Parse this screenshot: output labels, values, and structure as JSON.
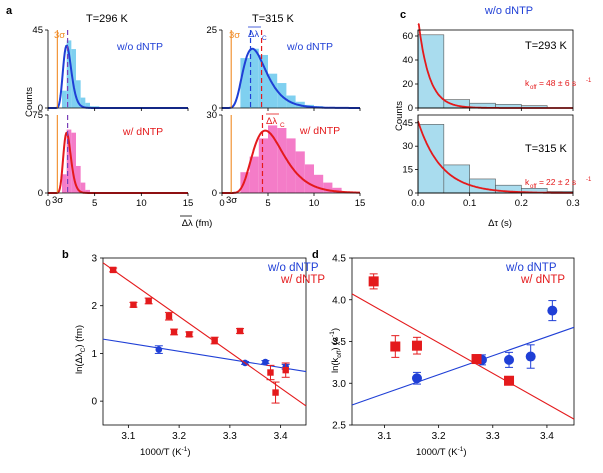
{
  "colors": {
    "blue": "#1f3fd6",
    "red": "#e41a1c",
    "orange": "#f08a24",
    "hist_blue": "#7fd0f0",
    "hist_pink": "#f47cc8",
    "hist_c": "#a9dcee",
    "axis": "#000000"
  },
  "panel_a": {
    "label": "a",
    "temp_left": "T=296 K",
    "temp_right": "T=315 K",
    "ylabel": "Counts",
    "xlabel": "Δλ (fm)",
    "legend_top": "w/o dNTP",
    "legend_bottom": "w/ dNTP",
    "three_sigma": "3σ",
    "dlambda_c": "Δλ",
    "dlambda_c_sub": "C"
  },
  "panel_c": {
    "label": "c",
    "title": "w/o dNTP",
    "ylabel": "Counts",
    "xlabel": "Δτ (s)",
    "temp_top": "T=293 K",
    "temp_bottom": "T=315 K",
    "koff_top": "48 ± 6 s",
    "koff_bottom": "22 ± 2 s",
    "koff_prefix": "k",
    "koff_sub": "off",
    "koff_exp": "-1"
  },
  "panel_b": {
    "label": "b",
    "ylabel": "ln(Δλ",
    "ylabel_sub": "C",
    "ylabel_end": ") (fm)",
    "xlabel": "1000/T (K",
    "xlabel_exp": "-1",
    "xlabel_end": ")",
    "legend_blue": "w/o dNTP",
    "legend_red": "w/ dNTP"
  },
  "panel_d": {
    "label": "d",
    "ylabel": "ln(k",
    "ylabel_sub": "off",
    "ylabel_end": ") (s",
    "ylabel_exp": "-1",
    "ylabel_close": ")",
    "xlabel": "1000/T (K",
    "xlabel_exp": "-1",
    "xlabel_end": ")",
    "legend_blue": "w/o dNTP",
    "legend_red": "w/ dNTP"
  },
  "chart_data": [
    {
      "id": "a_top_left",
      "type": "bar",
      "title": "T=296 K",
      "series": "w/o dNTP",
      "xlim": [
        0,
        15
      ],
      "ylim": [
        0,
        45
      ],
      "yticks": [
        0,
        45
      ],
      "bin_width": 0.5,
      "bins_start": 1.5,
      "values": [
        10,
        39,
        34,
        16,
        6,
        3,
        1,
        1,
        0
      ],
      "fit": {
        "kind": "lognormal",
        "peak_x": 2.0,
        "peak_y": 36,
        "sigma": 0.22
      },
      "three_sigma_x": 1.0,
      "mean_x": 2.1
    },
    {
      "id": "a_bottom_left",
      "type": "bar",
      "series": "w/ dNTP",
      "xlim": [
        0,
        15
      ],
      "ylim": [
        0,
        75
      ],
      "yticks": [
        0,
        75
      ],
      "bin_width": 0.5,
      "bins_start": 1.5,
      "values": [
        18,
        61,
        58,
        26,
        10,
        3,
        1,
        0
      ],
      "fit": {
        "kind": "lognormal",
        "peak_x": 2.0,
        "peak_y": 58,
        "sigma": 0.2
      },
      "three_sigma_x": 1.0,
      "mean_x": 2.1
    },
    {
      "id": "a_top_right",
      "type": "bar",
      "title": "T=315 K",
      "series": "w/o dNTP",
      "xlim": [
        0,
        15
      ],
      "ylim": [
        0,
        25
      ],
      "yticks": [
        0,
        25
      ],
      "bin_width": 1,
      "bins_start": 2.0,
      "values": [
        16,
        19,
        17,
        11,
        8,
        4,
        2,
        1,
        0.6
      ],
      "fit": {
        "kind": "lognormal",
        "peak_x": 3.3,
        "peak_y": 19,
        "sigma": 0.38
      },
      "three_sigma_x": 1.0,
      "mean_x": 3.1,
      "dlambda_c_x": 3.1
    },
    {
      "id": "a_bottom_right",
      "type": "bar",
      "series": "w/ dNTP",
      "xlim": [
        0,
        15
      ],
      "ylim": [
        0,
        30
      ],
      "yticks": [
        0,
        30
      ],
      "bin_width": 1,
      "bins_start": 2.0,
      "values": [
        8,
        14,
        21,
        26,
        25,
        21,
        16,
        11,
        7,
        4,
        2
      ],
      "fit": {
        "kind": "lognormal",
        "peak_x": 4.7,
        "peak_y": 24,
        "sigma": 0.36
      },
      "three_sigma_x": 1.0,
      "mean_x": 4.4,
      "dlambda_c_x": 4.4
    },
    {
      "id": "c_top",
      "type": "bar",
      "title": "T=293 K",
      "xlim": [
        0,
        0.3
      ],
      "ylim": [
        0,
        65
      ],
      "yticks": [
        0,
        20,
        40,
        60
      ],
      "bin_width": 0.05,
      "bins_start": 0,
      "values": [
        61,
        7,
        4,
        3,
        2,
        0
      ],
      "fit": {
        "kind": "exponential",
        "k": 48,
        "amp": 75
      }
    },
    {
      "id": "c_bottom",
      "type": "bar",
      "title": "T=315 K",
      "xlim": [
        0,
        0.3
      ],
      "xticks": [
        0.0,
        0.1,
        0.2,
        0.3
      ],
      "ylim": [
        0,
        50
      ],
      "yticks": [
        0,
        15,
        30,
        45
      ],
      "bin_width": 0.05,
      "bins_start": 0,
      "values": [
        44,
        18,
        9,
        5,
        3,
        1
      ],
      "fit": {
        "kind": "exponential",
        "k": 22,
        "amp": 46
      }
    },
    {
      "id": "b",
      "type": "scatter",
      "xlim": [
        3.05,
        3.45
      ],
      "xticks": [
        3.1,
        3.2,
        3.3,
        3.4
      ],
      "ylim": [
        -0.5,
        3
      ],
      "yticks": [
        0,
        1,
        2,
        3
      ],
      "series": [
        {
          "name": "w/o dNTP",
          "color": "blue",
          "marker": "circle",
          "x": [
            3.16,
            3.33,
            3.37,
            3.41
          ],
          "y": [
            1.08,
            0.8,
            0.82,
            0.72
          ],
          "yerr": [
            0.08,
            0.03,
            0.03,
            0.05
          ],
          "fit": {
            "x": [
              3.05,
              3.45
            ],
            "y": [
              1.3,
              0.62
            ]
          }
        },
        {
          "name": "w/ dNTP",
          "color": "red",
          "marker": "square",
          "x": [
            3.07,
            3.11,
            3.14,
            3.18,
            3.19,
            3.22,
            3.27,
            3.32,
            3.38,
            3.39,
            3.41
          ],
          "y": [
            2.75,
            2.02,
            2.1,
            1.78,
            1.45,
            1.4,
            1.27,
            1.47,
            0.6,
            0.18,
            0.65
          ],
          "yerr": [
            0.04,
            0.05,
            0.06,
            0.08,
            0.06,
            0.05,
            0.07,
            0.05,
            0.15,
            0.22,
            0.15
          ],
          "fit": {
            "x": [
              3.05,
              3.45
            ],
            "y": [
              2.9,
              -0.1
            ]
          }
        }
      ]
    },
    {
      "id": "d",
      "type": "scatter",
      "xlim": [
        3.04,
        3.45
      ],
      "xticks": [
        3.1,
        3.2,
        3.3,
        3.4
      ],
      "ylim": [
        2.5,
        4.5
      ],
      "yticks": [
        2.5,
        3.0,
        3.5,
        4.0,
        4.5
      ],
      "series": [
        {
          "name": "w/o dNTP",
          "color": "blue",
          "marker": "circle",
          "x": [
            3.16,
            3.28,
            3.33,
            3.37,
            3.41
          ],
          "y": [
            3.06,
            3.28,
            3.28,
            3.32,
            3.87
          ],
          "yerr": [
            0.07,
            0.06,
            0.09,
            0.14,
            0.12
          ],
          "fit": {
            "x": [
              3.04,
              3.45
            ],
            "y": [
              2.74,
              3.67
            ]
          }
        },
        {
          "name": "w/ dNTP",
          "color": "red",
          "marker": "square",
          "x": [
            3.08,
            3.12,
            3.16,
            3.27,
            3.33
          ],
          "y": [
            4.22,
            3.44,
            3.45,
            3.29,
            3.03
          ],
          "yerr": [
            0.09,
            0.13,
            0.1,
            0.05,
            0.04
          ],
          "fit": {
            "x": [
              3.04,
              3.45
            ],
            "y": [
              4.07,
              2.57
            ]
          }
        }
      ]
    }
  ]
}
